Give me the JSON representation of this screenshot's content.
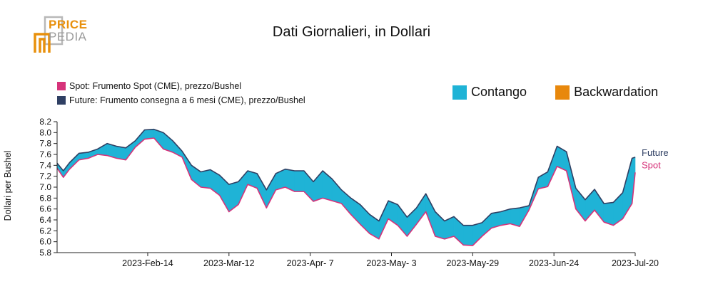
{
  "logo": {
    "line1": "PRICE",
    "line2": "PEDIA"
  },
  "colors": {
    "spot": "#d6337a",
    "future": "#2f3f63",
    "contango": "#1fb3d6",
    "backwardation": "#e8880c"
  },
  "legend": {
    "spot": "Spot: Frumento Spot (CME), prezzo/Bushel",
    "future": "Future: Frumento consegna a 6 mesi (CME), prezzo/Bushel",
    "contango": "Contango",
    "backwardation": "Backwardation"
  },
  "chart_data": {
    "type": "area",
    "title": "Dati Giornalieri, in Dollari",
    "ylabel": "Dollari per Bushel",
    "xlabel": "",
    "ylim": [
      5.8,
      8.2
    ],
    "yticks": [
      5.8,
      6.0,
      6.2,
      6.4,
      6.6,
      6.8,
      7.0,
      7.2,
      7.4,
      7.6,
      7.8,
      8.0,
      8.2
    ],
    "xticks": [
      "2023-Feb-14",
      "2023-Mar-12",
      "2023-Apr- 7",
      "2023-May- 3",
      "2023-May-29",
      "2023-Jun-24",
      "2023-Jul-20"
    ],
    "x_start": "2023-Jan-16",
    "x_end": "2023-Jul-20",
    "end_labels": {
      "future": "Future",
      "spot": "Spot"
    },
    "x": [
      "2023-01-16",
      "2023-01-18",
      "2023-01-20",
      "2023-01-23",
      "2023-01-26",
      "2023-01-29",
      "2023-02-01",
      "2023-02-04",
      "2023-02-07",
      "2023-02-10",
      "2023-02-13",
      "2023-02-16",
      "2023-02-19",
      "2023-02-22",
      "2023-02-25",
      "2023-02-28",
      "2023-03-03",
      "2023-03-06",
      "2023-03-09",
      "2023-03-12",
      "2023-03-15",
      "2023-03-18",
      "2023-03-21",
      "2023-03-24",
      "2023-03-27",
      "2023-03-30",
      "2023-04-02",
      "2023-04-05",
      "2023-04-08",
      "2023-04-11",
      "2023-04-14",
      "2023-04-17",
      "2023-04-20",
      "2023-04-23",
      "2023-04-26",
      "2023-04-29",
      "2023-05-02",
      "2023-05-05",
      "2023-05-08",
      "2023-05-11",
      "2023-05-14",
      "2023-05-17",
      "2023-05-20",
      "2023-05-23",
      "2023-05-26",
      "2023-05-29",
      "2023-06-01",
      "2023-06-04",
      "2023-06-07",
      "2023-06-10",
      "2023-06-13",
      "2023-06-16",
      "2023-06-19",
      "2023-06-22",
      "2023-06-25",
      "2023-06-28",
      "2023-07-01",
      "2023-07-04",
      "2023-07-07",
      "2023-07-10",
      "2023-07-13",
      "2023-07-16",
      "2023-07-19",
      "2023-07-20"
    ],
    "series": [
      {
        "name": "Future",
        "values": [
          7.44,
          7.3,
          7.45,
          7.62,
          7.64,
          7.7,
          7.8,
          7.75,
          7.72,
          7.85,
          8.05,
          8.06,
          8.0,
          7.85,
          7.66,
          7.4,
          7.28,
          7.32,
          7.22,
          7.05,
          7.1,
          7.3,
          7.25,
          6.95,
          7.25,
          7.33,
          7.3,
          7.3,
          7.1,
          7.3,
          7.15,
          6.95,
          6.8,
          6.68,
          6.5,
          6.38,
          6.75,
          6.68,
          6.45,
          6.62,
          6.88,
          6.55,
          6.38,
          6.46,
          6.3,
          6.3,
          6.35,
          6.52,
          6.55,
          6.6,
          6.62,
          6.66,
          7.18,
          7.28,
          7.75,
          7.65,
          6.98,
          6.77,
          6.96,
          6.7,
          6.72,
          6.9,
          7.53,
          7.55
        ]
      },
      {
        "name": "Spot",
        "values": [
          7.35,
          7.18,
          7.33,
          7.5,
          7.53,
          7.6,
          7.58,
          7.53,
          7.5,
          7.73,
          7.88,
          7.9,
          7.7,
          7.64,
          7.55,
          7.14,
          7.0,
          6.98,
          6.85,
          6.55,
          6.68,
          7.05,
          6.98,
          6.62,
          6.95,
          7.0,
          6.92,
          6.92,
          6.74,
          6.8,
          6.75,
          6.7,
          6.5,
          6.32,
          6.15,
          6.05,
          6.42,
          6.3,
          6.1,
          6.32,
          6.55,
          6.1,
          6.05,
          6.1,
          5.94,
          5.93,
          6.1,
          6.25,
          6.3,
          6.33,
          6.28,
          6.58,
          6.97,
          7.01,
          7.38,
          7.3,
          6.6,
          6.38,
          6.58,
          6.36,
          6.3,
          6.42,
          6.7,
          7.27
        ]
      }
    ]
  }
}
